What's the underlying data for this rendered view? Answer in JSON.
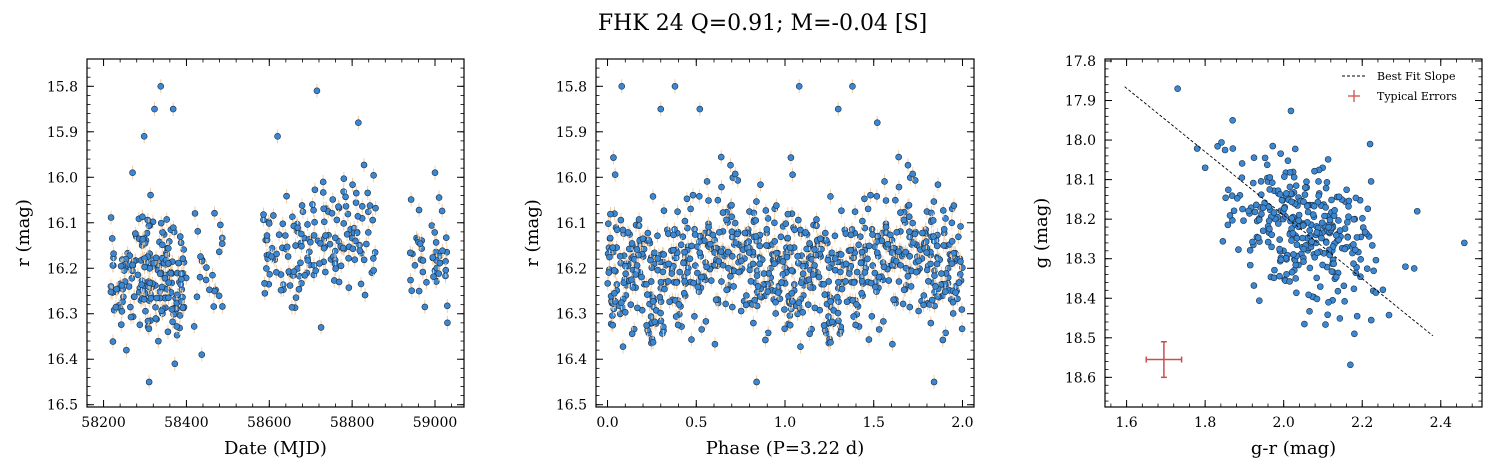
{
  "figure": {
    "suptitle": "FHK 24  Q=0.91; M=-0.04 [S]",
    "marker_color": "#3c87d2",
    "error_bar_color": "#f0cfa6",
    "typical_error_color": "#c8504c",
    "fit_line_color": "#000000"
  },
  "chart_data": [
    {
      "type": "scatter",
      "panel": "light-curve",
      "xlabel": "Date (MJD)",
      "ylabel": "r (mag)",
      "xlim": [
        58160,
        59070
      ],
      "ylim": [
        16.505,
        15.74
      ],
      "y_inverted": true,
      "xticks": [
        58200,
        58400,
        58600,
        58800,
        59000
      ],
      "xtick_labels": [
        "58200",
        "58400",
        "58600",
        "58800",
        "59000"
      ],
      "yticks": [
        15.8,
        15.9,
        16.0,
        16.1,
        16.2,
        16.3,
        16.4,
        16.5
      ],
      "ytick_labels": [
        "15.8",
        "15.9",
        "16.0",
        "16.1",
        "16.2",
        "16.3",
        "16.4",
        "16.5"
      ],
      "grid": false,
      "clusters": [
        {
          "x_range": [
            58215,
            58290
          ],
          "y_center": 16.23,
          "y_spread": 0.07,
          "count": 55
        },
        {
          "x_range": [
            58290,
            58400
          ],
          "y_center": 16.21,
          "y_spread": 0.09,
          "count": 150
        },
        {
          "x_range": [
            58410,
            58490
          ],
          "y_center": 16.2,
          "y_spread": 0.08,
          "count": 22
        },
        {
          "x_range": [
            58580,
            58700
          ],
          "y_center": 16.15,
          "y_spread": 0.08,
          "count": 70
        },
        {
          "x_range": [
            58700,
            58860
          ],
          "y_center": 16.13,
          "y_spread": 0.08,
          "count": 90
        },
        {
          "x_range": [
            58940,
            59030
          ],
          "y_center": 16.17,
          "y_spread": 0.07,
          "count": 45
        }
      ],
      "points": [
        {
          "x": 58338,
          "y": 15.8
        },
        {
          "x": 58715,
          "y": 15.81
        },
        {
          "x": 58310,
          "y": 16.45
        },
        {
          "x": 58372,
          "y": 16.41
        },
        {
          "x": 58437,
          "y": 16.39
        },
        {
          "x": 58255,
          "y": 16.38
        },
        {
          "x": 58323,
          "y": 15.85
        },
        {
          "x": 58368,
          "y": 15.85
        },
        {
          "x": 58815,
          "y": 15.88
        },
        {
          "x": 58298,
          "y": 15.91
        },
        {
          "x": 58620,
          "y": 15.91
        },
        {
          "x": 59000,
          "y": 15.99
        },
        {
          "x": 59030,
          "y": 16.32
        },
        {
          "x": 58725,
          "y": 16.33
        },
        {
          "x": 58270,
          "y": 15.99
        }
      ]
    },
    {
      "type": "scatter",
      "panel": "phased",
      "xlabel": "Phase (P=3.22 d)",
      "ylabel": "r (mag)",
      "xlim": [
        -0.065,
        2.065
      ],
      "ylim": [
        16.505,
        15.74
      ],
      "y_inverted": true,
      "xticks": [
        0.0,
        0.5,
        1.0,
        1.5,
        2.0
      ],
      "xtick_labels": [
        "0.0",
        "0.5",
        "1.0",
        "1.5",
        "2.0"
      ],
      "yticks": [
        15.8,
        15.9,
        16.0,
        16.1,
        16.2,
        16.3,
        16.4,
        16.5
      ],
      "ytick_labels": [
        "15.8",
        "15.9",
        "16.0",
        "16.1",
        "16.2",
        "16.3",
        "16.4",
        "16.5"
      ],
      "grid": false,
      "phase_points": 430,
      "y_center": 16.19,
      "y_spread": 0.09,
      "points": [
        {
          "x": 0.08,
          "y": 15.8
        },
        {
          "x": 0.38,
          "y": 15.8
        },
        {
          "x": 1.08,
          "y": 15.8
        },
        {
          "x": 1.38,
          "y": 15.8
        },
        {
          "x": 0.84,
          "y": 16.45
        },
        {
          "x": 1.84,
          "y": 16.45
        },
        {
          "x": 0.3,
          "y": 15.85
        },
        {
          "x": 1.3,
          "y": 15.85
        },
        {
          "x": 0.52,
          "y": 15.85
        },
        {
          "x": 1.52,
          "y": 15.88
        }
      ]
    },
    {
      "type": "scatter",
      "panel": "color-magnitude",
      "xlabel": "g-r (mag)",
      "ylabel": "g (mag)",
      "xlim": [
        1.545,
        2.505
      ],
      "ylim": [
        18.675,
        17.795
      ],
      "y_inverted": true,
      "xticks": [
        1.6,
        1.8,
        2.0,
        2.2,
        2.4
      ],
      "xtick_labels": [
        "1.6",
        "1.8",
        "2.0",
        "2.2",
        "2.4"
      ],
      "yticks": [
        17.8,
        17.9,
        18.0,
        18.1,
        18.2,
        18.3,
        18.4,
        18.5,
        18.6
      ],
      "ytick_labels": [
        "17.8",
        "17.9",
        "18.0",
        "18.1",
        "18.2",
        "18.3",
        "18.4",
        "18.5",
        "18.6"
      ],
      "grid": false,
      "cloud": {
        "x_center": 2.05,
        "x_spread": 0.09,
        "y_center": 18.22,
        "y_spread": 0.09,
        "count": 330
      },
      "points": [
        {
          "x": 1.73,
          "y": 17.87
        },
        {
          "x": 2.46,
          "y": 18.26
        },
        {
          "x": 2.18,
          "y": 18.49
        },
        {
          "x": 2.34,
          "y": 18.18
        },
        {
          "x": 2.31,
          "y": 18.32
        },
        {
          "x": 1.8,
          "y": 18.07
        },
        {
          "x": 1.87,
          "y": 17.95
        },
        {
          "x": 2.22,
          "y": 18.01
        }
      ],
      "best_fit": {
        "x": [
          1.595,
          2.38
        ],
        "y": [
          17.865,
          18.495
        ]
      },
      "typical_error": {
        "x": 1.695,
        "y": 18.555,
        "xerr": 0.045,
        "yerr": 0.045
      },
      "legend": {
        "placement": "top-right",
        "entries": [
          "Best Fit Slope",
          "Typical Errors"
        ]
      }
    }
  ]
}
